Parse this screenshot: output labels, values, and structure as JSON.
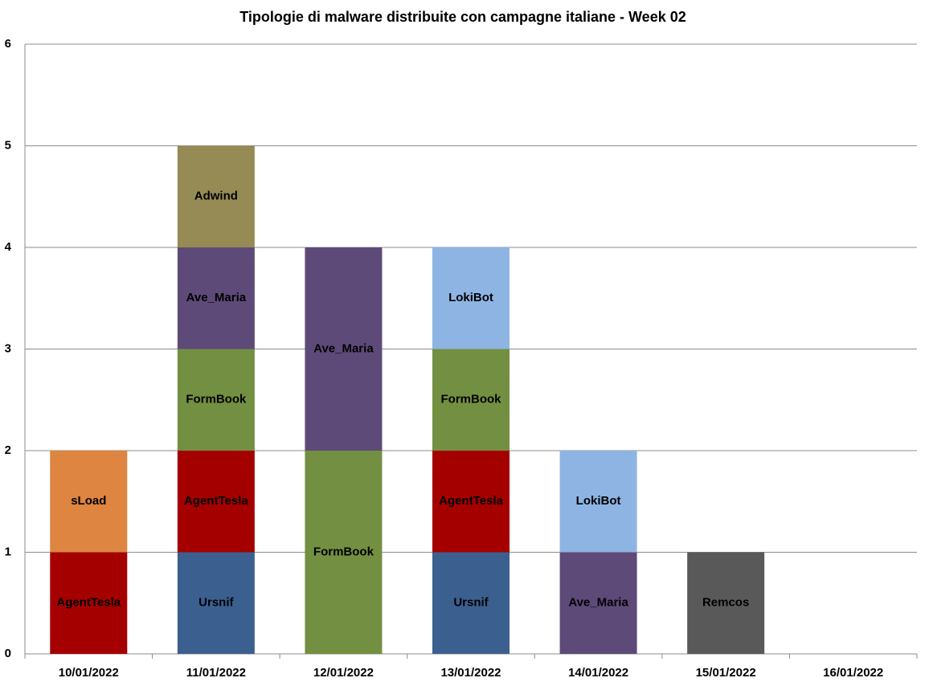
{
  "chart_data": {
    "type": "bar",
    "stacked": true,
    "title": "Tipologie  di malware distribuite con campagne italiane - Week 02",
    "categories": [
      "10/01/2022",
      "11/01/2022",
      "12/01/2022",
      "13/01/2022",
      "14/01/2022",
      "15/01/2022",
      "16/01/2022"
    ],
    "series": [
      {
        "name": "Ursnif",
        "color": "#3b5f8f",
        "values": [
          null,
          1,
          null,
          1,
          null,
          null,
          null
        ]
      },
      {
        "name": "AgentTesla",
        "color": "#a50000",
        "values": [
          1,
          1,
          null,
          1,
          null,
          null,
          null
        ]
      },
      {
        "name": "FormBook",
        "color": "#738f41",
        "values": [
          null,
          1,
          2,
          1,
          null,
          null,
          null
        ]
      },
      {
        "name": "Ave_Maria",
        "color": "#5e4a78",
        "values": [
          null,
          1,
          2,
          null,
          1,
          null,
          null
        ]
      },
      {
        "name": "LokiBot",
        "color": "#8eb4e3",
        "values": [
          null,
          null,
          null,
          1,
          1,
          null,
          null
        ]
      },
      {
        "name": "sLoad",
        "color": "#dd8541",
        "values": [
          1,
          null,
          null,
          null,
          null,
          null,
          null
        ]
      },
      {
        "name": "Adwind",
        "color": "#968b55",
        "values": [
          null,
          1,
          null,
          null,
          null,
          null,
          null
        ]
      },
      {
        "name": "Remcos",
        "color": "#595959",
        "values": [
          null,
          null,
          null,
          null,
          null,
          1,
          null
        ]
      }
    ],
    "ylim": [
      0,
      6
    ],
    "yticks": [
      0,
      1,
      2,
      3,
      4,
      5,
      6
    ],
    "grid": true
  }
}
